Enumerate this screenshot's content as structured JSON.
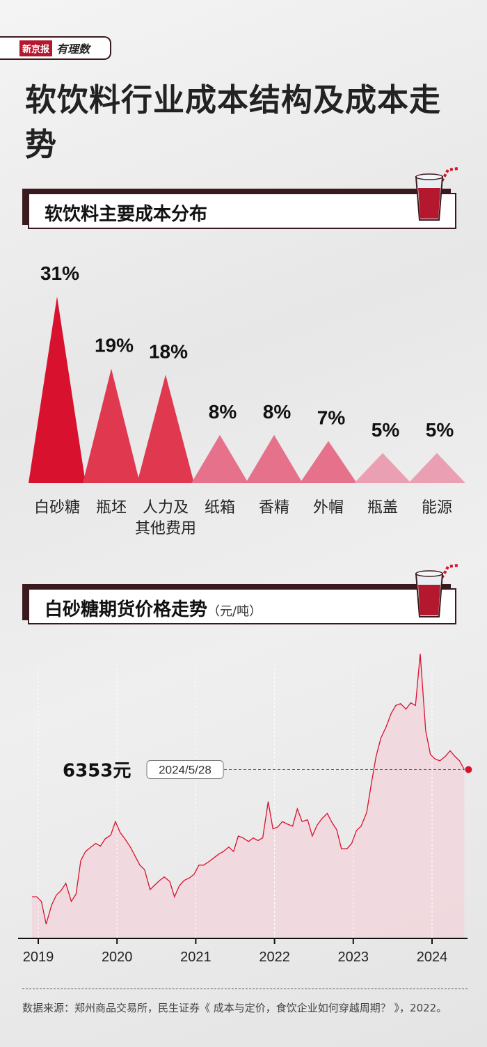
{
  "brand": {
    "name": "新京报",
    "tag": "有理数"
  },
  "title": "软饮料行业成本结构及成本走势",
  "section1": {
    "title": "软饮料主要成本分布"
  },
  "section2": {
    "title": "白砂糖期货价格走势",
    "unit": "（元/吨）"
  },
  "colors": {
    "dark": "#3a1a1e",
    "primary": "#d8112e",
    "mid": "#e0384f",
    "light": "#e5728a",
    "lighter": "#eaa0b2",
    "area": "#f3d6dc"
  },
  "chart_data": [
    {
      "type": "bar",
      "title": "软饮料主要成本分布",
      "categories": [
        "白砂糖",
        "瓶坯",
        "人力及其他费用",
        "纸箱",
        "香精",
        "外帽",
        "瓶盖",
        "能源"
      ],
      "category_labels": [
        [
          "白砂糖"
        ],
        [
          "瓶坯"
        ],
        [
          "人力及",
          "其他费用"
        ],
        [
          "纸箱"
        ],
        [
          "香精"
        ],
        [
          "外帽"
        ],
        [
          "瓶盖"
        ],
        [
          "能源"
        ]
      ],
      "values": [
        31,
        19,
        18,
        8,
        8,
        7,
        5,
        5
      ],
      "value_labels": [
        "31%",
        "19%",
        "18%",
        "8%",
        "8%",
        "7%",
        "5%",
        "5%"
      ],
      "unit": "%"
    },
    {
      "type": "area",
      "title": "白砂糖期货价格走势",
      "unit": "元/吨",
      "xlabel": "",
      "ylabel": "",
      "x_ticks": [
        "2019",
        "2020",
        "2021",
        "2022",
        "2023",
        "2024"
      ],
      "ylim": [
        4400,
        7700
      ],
      "annotation": {
        "date": "2024/5/28",
        "value": 6353,
        "label": "6353元"
      },
      "series": [
        {
          "x": [
            2018.92,
            2018.98,
            2019.04,
            2019.1,
            2019.17,
            2019.23,
            2019.29,
            2019.35,
            2019.42,
            2019.48,
            2019.54,
            2019.6,
            2019.67,
            2019.73,
            2019.79,
            2019.85,
            2019.92,
            2019.98,
            2020.04,
            2020.1,
            2020.17,
            2020.23,
            2020.29,
            2020.35,
            2020.42,
            2020.48,
            2020.54,
            2020.6,
            2020.67,
            2020.73,
            2020.79,
            2020.85,
            2020.92,
            2020.98,
            2021.04,
            2021.1,
            2021.17,
            2021.23,
            2021.29,
            2021.35,
            2021.42,
            2021.48,
            2021.54,
            2021.6,
            2021.67,
            2021.73,
            2021.79,
            2021.85,
            2021.92,
            2021.98,
            2022.04,
            2022.1,
            2022.17,
            2022.23,
            2022.29,
            2022.35,
            2022.42,
            2022.48,
            2022.54,
            2022.6,
            2022.67,
            2022.73,
            2022.79,
            2022.85,
            2022.92,
            2022.98,
            2023.04,
            2023.1,
            2023.17,
            2023.23,
            2023.29,
            2023.35,
            2023.42,
            2023.48,
            2023.54,
            2023.6,
            2023.67,
            2023.73,
            2023.79,
            2023.85,
            2023.92,
            2023.98,
            2024.04,
            2024.1,
            2024.17,
            2024.23,
            2024.29,
            2024.35,
            2024.41
          ],
          "values": [
            4950,
            4950,
            4900,
            4650,
            4860,
            4970,
            5020,
            5100,
            4900,
            4980,
            5350,
            5450,
            5500,
            5540,
            5510,
            5590,
            5630,
            5780,
            5660,
            5590,
            5500,
            5400,
            5300,
            5250,
            5030,
            5080,
            5130,
            5170,
            5120,
            4950,
            5070,
            5130,
            5160,
            5200,
            5300,
            5300,
            5340,
            5380,
            5420,
            5450,
            5500,
            5450,
            5620,
            5600,
            5560,
            5600,
            5570,
            5600,
            6000,
            5700,
            5720,
            5780,
            5750,
            5730,
            5920,
            5780,
            5800,
            5620,
            5740,
            5810,
            5870,
            5770,
            5690,
            5480,
            5480,
            5540,
            5680,
            5730,
            5880,
            6200,
            6500,
            6700,
            6830,
            6970,
            7060,
            7080,
            7020,
            7090,
            7060,
            7630,
            6780,
            6520,
            6470,
            6450,
            6500,
            6560,
            6500,
            6450,
            6353
          ]
        }
      ]
    }
  ],
  "source": "数据来源：郑州商品交易所，民生证券《 成本与定价，食饮企业如何穿越周期？ 》，2022。"
}
